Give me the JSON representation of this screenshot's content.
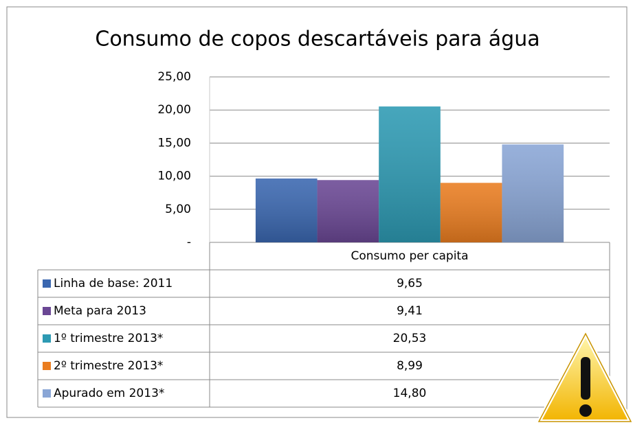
{
  "chart_data": {
    "type": "bar",
    "title": "Consumo de copos descartáveis para água",
    "categories": [
      "Consumo per capita"
    ],
    "series": [
      {
        "name": "Linha de base: 2011",
        "color": "#3a67b0",
        "values": [
          9.65
        ],
        "value_labels": [
          "9,65"
        ]
      },
      {
        "name": "Meta para 2013",
        "color": "#6a4794",
        "values": [
          9.41
        ],
        "value_labels": [
          "9,41"
        ]
      },
      {
        "name": "1º trimestre 2013*",
        "color": "#2d9ab3",
        "values": [
          20.53
        ],
        "value_labels": [
          "20,53"
        ]
      },
      {
        "name": "2º trimestre 2013*",
        "color": "#ea7d20",
        "values": [
          8.99
        ],
        "value_labels": [
          "8,99"
        ]
      },
      {
        "name": "Apurado em 2013*",
        "color": "#8aa6d6",
        "values": [
          14.8
        ],
        "value_labels": [
          "14,80"
        ]
      }
    ],
    "ylim": [
      0,
      25
    ],
    "yticks": [
      {
        "value": 0,
        "label": "-"
      },
      {
        "value": 5,
        "label": "5,00"
      },
      {
        "value": 10,
        "label": "10,00"
      },
      {
        "value": 15,
        "label": "15,00"
      },
      {
        "value": 20,
        "label": "20,00"
      },
      {
        "value": 25,
        "label": "25,00"
      }
    ],
    "grid": true
  }
}
